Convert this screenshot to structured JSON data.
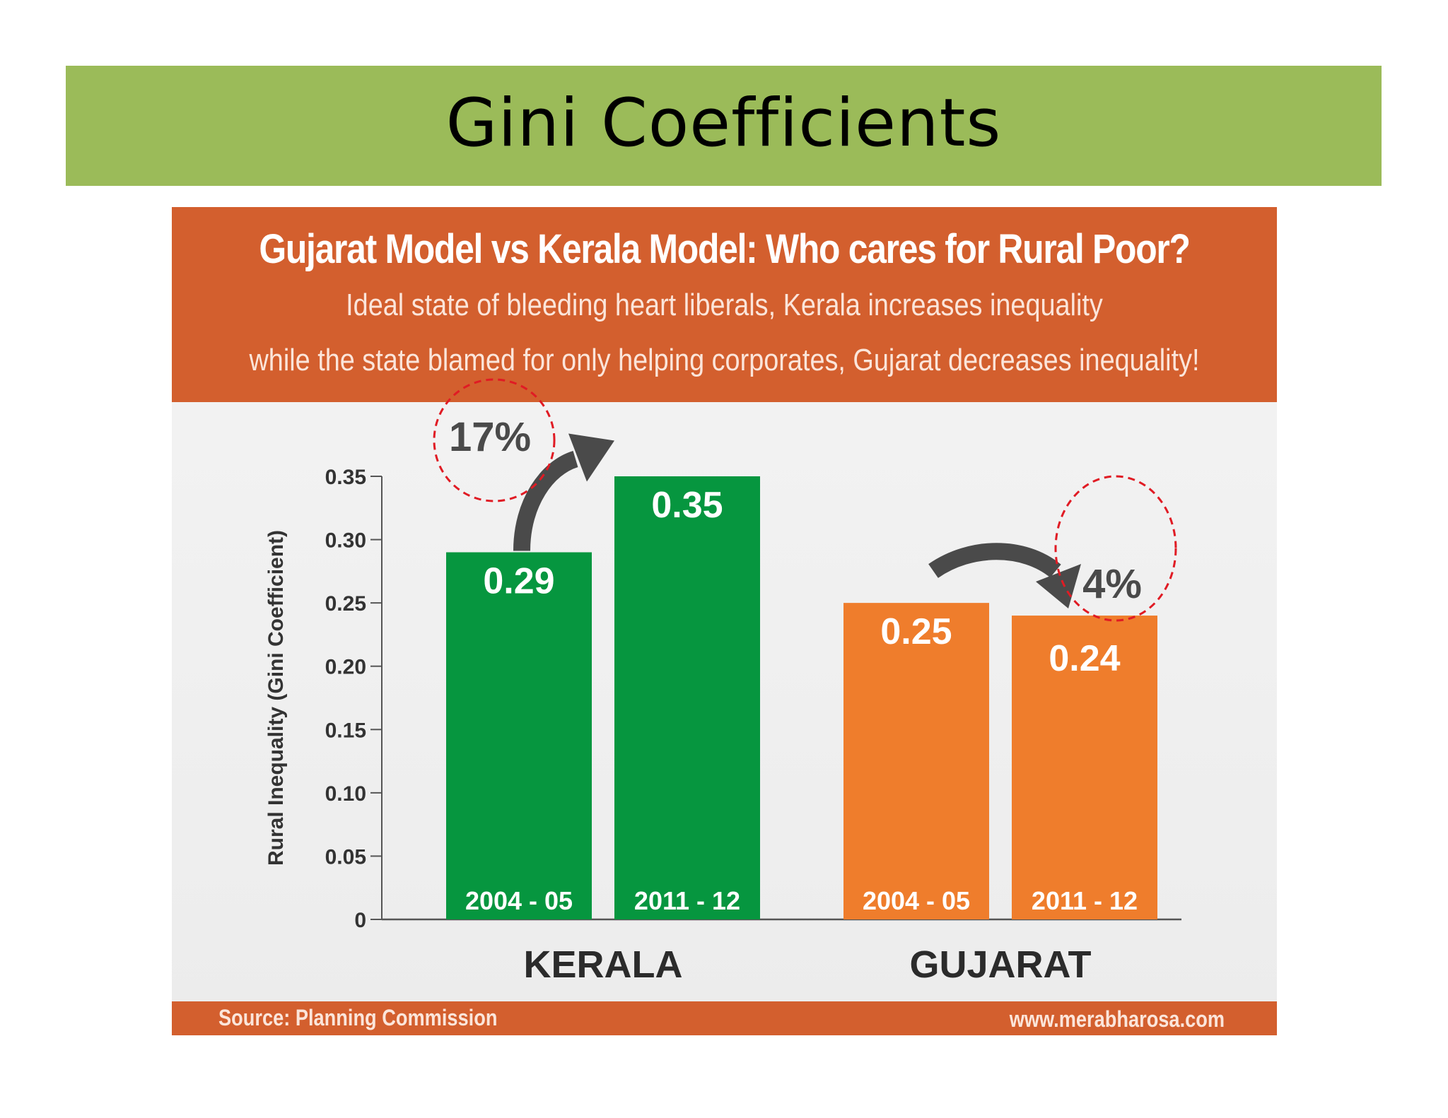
{
  "slide": {
    "title": "Gini Coefficients"
  },
  "infographic": {
    "headline": "Gujarat Model vs Kerala Model: Who cares for Rural Poor?",
    "subline1": "Ideal state of bleeding heart liberals, Kerala increases inequality",
    "subline2": "while the state blamed for only helping corporates, Gujarat decreases inequality!",
    "source": "Source: Planning Commission",
    "website": "www.merabharosa.com"
  },
  "colors": {
    "title_bar": "#9bbb59",
    "band": "#d35f2e",
    "kerala": "#06963f",
    "gujarat": "#ef7d2c",
    "arrow": "#4a4a4a",
    "highlight_circle": "#e01b24"
  },
  "chart_data": {
    "type": "bar",
    "ylabel": "Rural Inequality (Gini Coefficient)",
    "ylim": [
      0,
      0.35
    ],
    "yticks": [
      "0",
      "0.05",
      "0.10",
      "0.15",
      "0.20",
      "0.25",
      "0.30",
      "0.35"
    ],
    "yticks_values": [
      0,
      0.05,
      0.1,
      0.15,
      0.2,
      0.25,
      0.3,
      0.35
    ],
    "groups": [
      {
        "name": "KERALA",
        "color": "#06963f",
        "bars": [
          {
            "period": "2004 - 05",
            "value": 0.29,
            "label": "0.29"
          },
          {
            "period": "2011 - 12",
            "value": 0.35,
            "label": "0.35"
          }
        ],
        "change": {
          "label": "17%",
          "direction": "up"
        }
      },
      {
        "name": "GUJARAT",
        "color": "#ef7d2c",
        "bars": [
          {
            "period": "2004 - 05",
            "value": 0.25,
            "label": "0.25"
          },
          {
            "period": "2011 - 12",
            "value": 0.24,
            "label": "0.24"
          }
        ],
        "change": {
          "label": "4%",
          "direction": "down"
        }
      }
    ],
    "grid": false,
    "legend": "none"
  }
}
